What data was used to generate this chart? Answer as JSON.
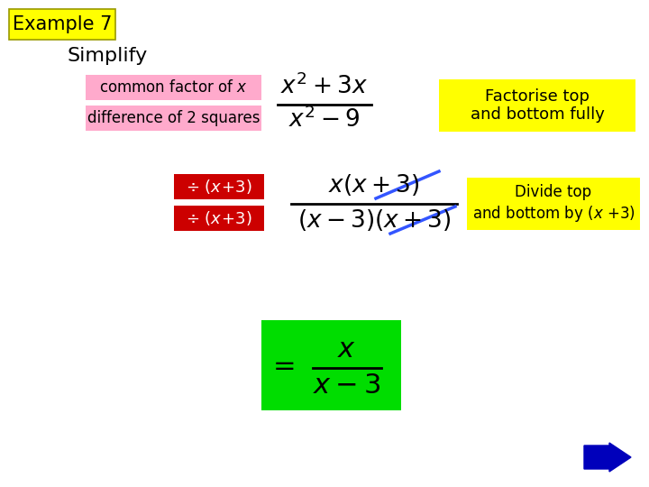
{
  "bg_color": "#ffffff",
  "title_box_color": "#ffff00",
  "title_text": "Example 7",
  "simplify_text": "Simplify",
  "pink_color": "#ffaacc",
  "pink_label1": "common factor of ",
  "pink_label2": "difference of 2 squares",
  "red_color": "#cc0000",
  "yellow_color": "#ffff00",
  "green_color": "#00dd00",
  "yellow_label1": "Factorise top\nand bottom fully",
  "yellow_label2": "Divide top\nand bottom by (",
  "arrow_color": "#0000bb",
  "frac1_num": "$x^2+3x$",
  "frac1_den": "$x^2-9$",
  "frac2_num": "$x(x+3)$",
  "frac2_den": "$(x-3)(x+3)$",
  "frac3_num": "$x$",
  "frac3_den": "$x-3$"
}
